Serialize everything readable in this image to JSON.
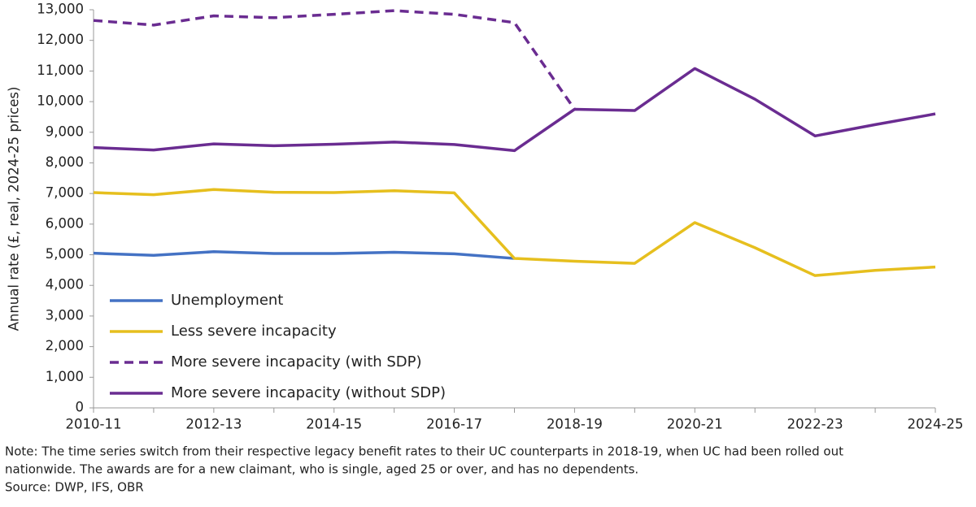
{
  "chart_data": {
    "type": "line",
    "y_label": "Annual rate (£, real, 2024-25 prices)",
    "categories": [
      "2010-11",
      null,
      "2012-13",
      null,
      "2014-15",
      null,
      "2016-17",
      null,
      "2018-19",
      null,
      "2020-21",
      null,
      "2022-23",
      null,
      "2024-25"
    ],
    "series": [
      {
        "name": "Unemployment",
        "color": "#4472c4",
        "line_style": "solid",
        "values": [
          5050,
          4980,
          5100,
          5040,
          5040,
          5080,
          5030,
          4880,
          null,
          null,
          null,
          null,
          null,
          null,
          null
        ]
      },
      {
        "name": "Less severe incapacity",
        "color": "#e6bf1e",
        "line_style": "solid",
        "values": [
          7030,
          6960,
          7130,
          7040,
          7030,
          7090,
          7020,
          4880,
          4790,
          4720,
          6050,
          5230,
          4320,
          4490,
          4600
        ]
      },
      {
        "name": "More severe incapacity (with SDP)",
        "color": "#6a2c91",
        "line_style": "dashed",
        "values": [
          12650,
          12500,
          12800,
          12740,
          12850,
          12970,
          12850,
          12580,
          9750,
          null,
          null,
          null,
          null,
          null,
          null
        ]
      },
      {
        "name": "More severe incapacity (without SDP)",
        "color": "#6a2c91",
        "line_style": "solid",
        "values": [
          8500,
          8420,
          8620,
          8560,
          8610,
          8680,
          8600,
          8400,
          9750,
          9710,
          11080,
          10080,
          8880,
          9250,
          9600
        ]
      }
    ],
    "ylim": [
      0,
      13000
    ],
    "yticks": [
      0,
      {
        "value": 1000,
        "label": "1,000"
      },
      {
        "value": 2000,
        "label": "2,000"
      },
      {
        "value": 3000,
        "label": "3,000"
      },
      {
        "value": 4000,
        "label": "4,000"
      },
      {
        "value": 5000,
        "label": "5,000"
      },
      {
        "value": 6000,
        "label": "6,000"
      },
      {
        "value": 7000,
        "label": "7,000"
      },
      {
        "value": 8000,
        "label": "8,000"
      },
      {
        "value": 9000,
        "label": "9,000"
      },
      {
        "value": 10000,
        "label": "10,000"
      },
      {
        "value": 11000,
        "label": "11,000"
      },
      {
        "value": 12000,
        "label": "12,000"
      },
      {
        "value": 13000,
        "label": "13,000"
      }
    ],
    "grid": false,
    "legend": "lower-left",
    "note": [
      "Note: The time series switch from their respective legacy benefit rates to their UC counterparts in 2018-19, when UC had been rolled out",
      "nationwide. The awards are for a new claimant, who is single, aged 25 or over, and has no dependents."
    ],
    "source": "Source: DWP, IFS, OBR"
  }
}
